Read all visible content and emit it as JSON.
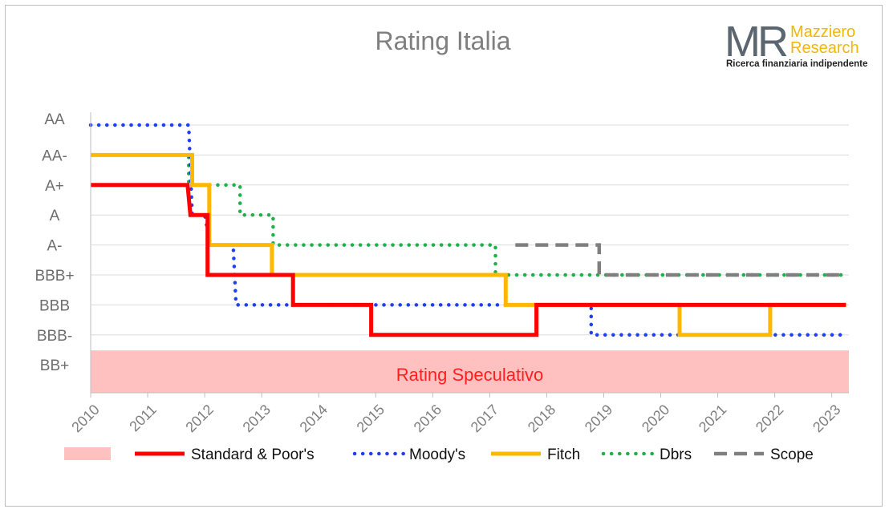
{
  "chart_data": {
    "type": "line",
    "title": "Rating Italia",
    "xlabel": "",
    "ylabel": "",
    "x_range": [
      2010,
      2023.3
    ],
    "x_ticks": [
      "2010",
      "2011",
      "2012",
      "2013",
      "2014",
      "2015",
      "2016",
      "2017",
      "2018",
      "2019",
      "2020",
      "2021",
      "2022",
      "2023"
    ],
    "y_categories": [
      "AA",
      "AA-",
      "A+",
      "A",
      "A-",
      "BBB+",
      "BBB",
      "BBB-",
      "BB+"
    ],
    "region": {
      "label": "Rating Speculativo",
      "from": "BB+",
      "color": "#ffc0c0"
    },
    "grid": true,
    "legend_position": "bottom",
    "series": [
      {
        "name": "Standard & Poor's",
        "color": "#ff0000",
        "style": "solid",
        "points": [
          [
            2010,
            "A+"
          ],
          [
            2011.7,
            "A+"
          ],
          [
            2011.75,
            "A"
          ],
          [
            2012.05,
            "A"
          ],
          [
            2012.05,
            "BBB+"
          ],
          [
            2013.55,
            "BBB+"
          ],
          [
            2013.55,
            "BBB"
          ],
          [
            2014.92,
            "BBB"
          ],
          [
            2014.92,
            "BBB-"
          ],
          [
            2017.82,
            "BBB-"
          ],
          [
            2017.82,
            "BBB"
          ],
          [
            2023.25,
            "BBB"
          ]
        ]
      },
      {
        "name": "Moody's",
        "color": "#1f3ff5",
        "style": "dotted",
        "points": [
          [
            2010,
            "AA"
          ],
          [
            2011.72,
            "AA"
          ],
          [
            2011.78,
            "A"
          ],
          [
            2012.0,
            "A"
          ],
          [
            2012.1,
            "A-"
          ],
          [
            2012.5,
            "A-"
          ],
          [
            2012.55,
            "BBB"
          ],
          [
            2018.78,
            "BBB"
          ],
          [
            2018.78,
            "BBB-"
          ],
          [
            2023.25,
            "BBB-"
          ]
        ]
      },
      {
        "name": "Fitch",
        "color": "#ffb800",
        "style": "solid",
        "points": [
          [
            2010,
            "AA-"
          ],
          [
            2011.78,
            "AA-"
          ],
          [
            2011.78,
            "A+"
          ],
          [
            2012.08,
            "A+"
          ],
          [
            2012.08,
            "A-"
          ],
          [
            2013.18,
            "A-"
          ],
          [
            2013.18,
            "BBB+"
          ],
          [
            2017.28,
            "BBB+"
          ],
          [
            2017.28,
            "BBB"
          ],
          [
            2020.33,
            "BBB"
          ],
          [
            2020.33,
            "BBB-"
          ],
          [
            2021.92,
            "BBB-"
          ],
          [
            2021.92,
            "BBB"
          ],
          [
            2023.25,
            "BBB"
          ]
        ]
      },
      {
        "name": "Dbrs",
        "color": "#1fb04a",
        "style": "dotted",
        "points": [
          [
            2011.05,
            "AA-"
          ],
          [
            2011.72,
            "AA-"
          ],
          [
            2011.72,
            "A+"
          ],
          [
            2012.62,
            "A+"
          ],
          [
            2012.62,
            "A"
          ],
          [
            2013.2,
            "A"
          ],
          [
            2013.2,
            "A-"
          ],
          [
            2017.1,
            "A-"
          ],
          [
            2017.1,
            "BBB+"
          ],
          [
            2023.25,
            "BBB+"
          ]
        ]
      },
      {
        "name": "Scope",
        "color": "#7f7f7f",
        "style": "dashed",
        "points": [
          [
            2017.45,
            "A-"
          ],
          [
            2018.92,
            "A-"
          ],
          [
            2018.92,
            "BBB+"
          ],
          [
            2023.25,
            "BBB+"
          ]
        ]
      }
    ]
  },
  "branding": {
    "logo_mark": "MR",
    "name_line1": "Mazziero",
    "name_line2": "Research",
    "tagline": "Ricerca finanziaria indipendente",
    "mark_color": "#5b6670",
    "name_color": "#f2b705"
  }
}
